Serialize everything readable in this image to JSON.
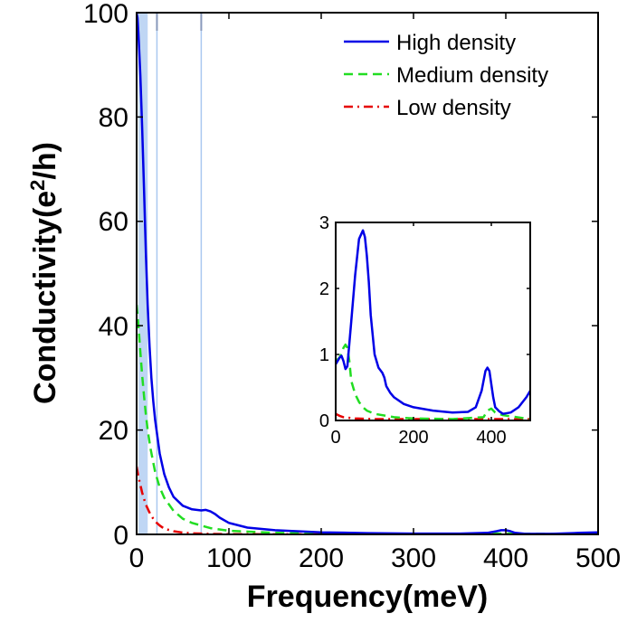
{
  "chart_data": [
    {
      "type": "line",
      "id": "main",
      "xlabel": "Frequency(meV)",
      "ylabel_parts": [
        "Conductivity(e",
        "2",
        "/h)"
      ],
      "xlim": [
        0,
        500
      ],
      "ylim": [
        0,
        100
      ],
      "xticks": [
        "0",
        "100",
        "200",
        "300",
        "400",
        "500"
      ],
      "yticks": [
        "0",
        "20",
        "40",
        "60",
        "80",
        "100"
      ],
      "legend": {
        "position": "top-right"
      },
      "series": [
        {
          "name": "High density",
          "color": "#0000e6",
          "style": "solid",
          "x": [
            0,
            1,
            2,
            4,
            6,
            8,
            10,
            12,
            14,
            16,
            18,
            20,
            25,
            30,
            35,
            40,
            50,
            60,
            70,
            75,
            80,
            85,
            90,
            100,
            120,
            150,
            200,
            250,
            300,
            350,
            380,
            390,
            395,
            400,
            405,
            410,
            420,
            450,
            480,
            500
          ],
          "y": [
            100,
            99,
            96,
            88,
            78,
            66,
            54,
            44,
            36,
            30,
            25.5,
            22,
            15.5,
            11.5,
            9,
            7.2,
            5.5,
            4.8,
            4.6,
            4.7,
            4.4,
            3.9,
            3.2,
            2.2,
            1.3,
            0.8,
            0.4,
            0.25,
            0.15,
            0.15,
            0.3,
            0.6,
            0.8,
            0.8,
            0.6,
            0.3,
            0.12,
            0.1,
            0.3,
            0.4
          ]
        },
        {
          "name": "Medium density",
          "color": "#22dd22",
          "style": "dashed",
          "x": [
            0,
            2,
            4,
            6,
            8,
            10,
            12,
            15,
            20,
            25,
            30,
            40,
            50,
            60,
            80,
            100,
            150,
            200,
            300,
            400,
            500
          ],
          "y": [
            44,
            40,
            35,
            30.5,
            26.5,
            23,
            20,
            16.5,
            12,
            9,
            7,
            4.5,
            3,
            2.2,
            1.2,
            0.7,
            0.3,
            0.15,
            0.08,
            0.15,
            0.05
          ]
        },
        {
          "name": "Low density",
          "color": "#e60000",
          "style": "dashdot",
          "x": [
            0,
            2,
            4,
            6,
            8,
            10,
            15,
            20,
            25,
            30,
            40,
            50,
            60,
            80,
            100,
            150,
            200,
            300,
            400,
            500
          ],
          "y": [
            13,
            11,
            9.5,
            8,
            6.8,
            5.7,
            3.8,
            2.5,
            1.7,
            1.1,
            0.6,
            0.35,
            0.2,
            0.1,
            0.05,
            0.02,
            0.02,
            0.02,
            0.02,
            0.02
          ]
        }
      ],
      "highlights": [
        {
          "type": "band",
          "x": [
            2,
            12
          ],
          "color": "#aac8f0"
        },
        {
          "type": "vline",
          "x": 22,
          "color": "#aac8f0"
        },
        {
          "type": "vline",
          "x": 70,
          "color": "#aac8f0"
        }
      ]
    },
    {
      "type": "line",
      "id": "inset",
      "xlim": [
        0,
        500
      ],
      "ylim": [
        0,
        3
      ],
      "xticks": [
        "0",
        "200",
        "400"
      ],
      "yticks": [
        "0",
        "1",
        "2",
        "3"
      ],
      "series": [
        {
          "name": "High density",
          "color": "#0000e6",
          "style": "solid",
          "x": [
            0,
            10,
            15,
            20,
            25,
            30,
            40,
            50,
            60,
            70,
            75,
            80,
            85,
            90,
            100,
            110,
            120,
            125,
            130,
            140,
            150,
            175,
            200,
            250,
            300,
            340,
            360,
            375,
            385,
            390,
            395,
            400,
            405,
            410,
            420,
            430,
            450,
            470,
            490,
            500
          ],
          "y": [
            0.85,
            0.95,
            0.98,
            0.9,
            0.78,
            0.82,
            1.5,
            2.2,
            2.75,
            2.88,
            2.78,
            2.5,
            2.1,
            1.6,
            1.0,
            0.8,
            0.72,
            0.65,
            0.52,
            0.42,
            0.35,
            0.25,
            0.2,
            0.15,
            0.12,
            0.13,
            0.2,
            0.45,
            0.75,
            0.8,
            0.75,
            0.55,
            0.35,
            0.2,
            0.14,
            0.1,
            0.12,
            0.2,
            0.35,
            0.45
          ]
        },
        {
          "name": "Medium density",
          "color": "#22dd22",
          "style": "dashed",
          "x": [
            0,
            10,
            20,
            25,
            30,
            35,
            40,
            50,
            60,
            70,
            80,
            100,
            150,
            200,
            300,
            380,
            390,
            400,
            410,
            420,
            430,
            500
          ],
          "y": [
            0.9,
            0.95,
            1.1,
            1.15,
            1.1,
            0.9,
            0.6,
            0.4,
            0.28,
            0.2,
            0.15,
            0.1,
            0.05,
            0.03,
            0.02,
            0.05,
            0.15,
            0.18,
            0.12,
            0.1,
            0.08,
            0.02
          ]
        },
        {
          "name": "Low density",
          "color": "#e60000",
          "style": "dashdot",
          "x": [
            0,
            10,
            20,
            50,
            100,
            200,
            300,
            400,
            500
          ],
          "y": [
            0.1,
            0.07,
            0.05,
            0.03,
            0.02,
            0.02,
            0.02,
            0.02,
            0.02
          ]
        }
      ]
    }
  ]
}
